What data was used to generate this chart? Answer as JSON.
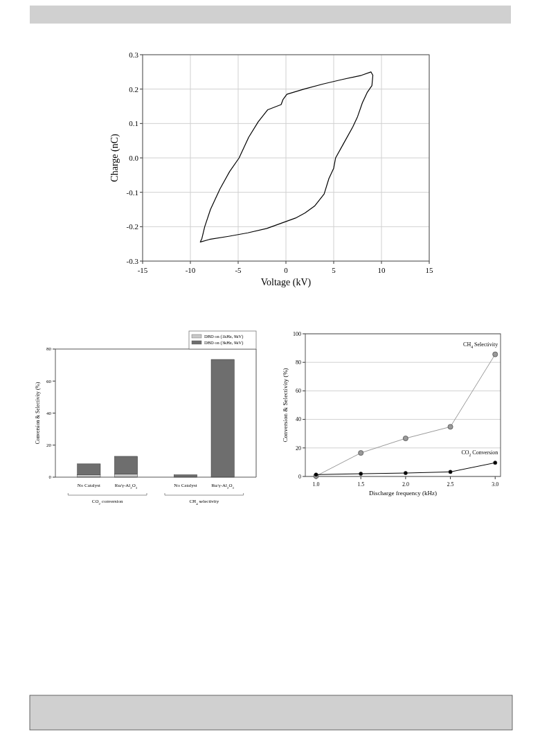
{
  "chart_data": [
    {
      "type": "line",
      "xlabel": "Voltage (kV)",
      "ylabel": "Charge (nC)",
      "xlim": [
        -15,
        15
      ],
      "ylim": [
        -0.3,
        0.3
      ],
      "xticks": [
        -15,
        -10,
        -5,
        {
          "value": 0,
          "label": "0"
        },
        5,
        10,
        15
      ],
      "yticks": [
        -0.3,
        -0.2,
        -0.1,
        {
          "value": 0,
          "label": "0.0"
        },
        0.1,
        0.2,
        0.3
      ],
      "grid": true,
      "marker": "none",
      "line_style": "solid",
      "series": [
        {
          "color": "#000000",
          "x": [
            -9,
            -8,
            -6,
            -4,
            -2,
            0,
            1,
            2,
            3,
            4,
            4.5,
            5,
            5.2,
            6,
            7,
            7.5,
            8,
            8.5,
            9,
            9.1,
            8.9,
            7.9,
            5.9,
            3.9,
            1.9,
            0.1,
            -0.3,
            -0.5,
            -1.9,
            -2.9,
            -3.9,
            -4.9,
            -5.9,
            -6.9,
            -7.9,
            -8.5,
            -8.8,
            -8.95
          ],
          "values": [
            -0.245,
            -0.237,
            -0.228,
            -0.218,
            -0.205,
            -0.185,
            -0.175,
            -0.16,
            -0.14,
            -0.105,
            -0.06,
            -0.03,
            0,
            0.04,
            0.09,
            0.12,
            0.16,
            0.19,
            0.21,
            0.24,
            0.25,
            0.24,
            0.228,
            0.215,
            0.2,
            0.185,
            0.17,
            0.155,
            0.14,
            0.105,
            0.06,
            0,
            -0.04,
            -0.09,
            -0.15,
            -0.2,
            -0.235,
            -0.243
          ]
        }
      ]
    },
    {
      "type": "bar",
      "stacked": true,
      "ylabel": "Conversion & Selectivity (%)",
      "categories": [
        "No Catalyst",
        "Ru/γ-Al$_{2}$O$_{3}$",
        "No Catalyst",
        "Ru/γ-Al$_{2}$O$_{3}$"
      ],
      "ylim": [
        0,
        80
      ],
      "yticks": [
        0,
        20,
        40,
        60,
        80
      ],
      "legend": "top right",
      "annotations": [
        "CO$_{2}$ conversion",
        "CH$_{4}$ selectivity"
      ],
      "series": [
        {
          "name": "DBD on (1kHz, 9kV)",
          "color": "#c8c8c8",
          "values": [
            1.5,
            2.0,
            0,
            0
          ]
        },
        {
          "name": "DBD on (3kHz, 9kV)",
          "color": "#6e6e6e",
          "values": [
            6.8,
            11.0,
            1.5,
            73.5
          ]
        }
      ]
    },
    {
      "type": "line",
      "xlabel": "Discharge frequency (kHz)",
      "ylabel": "Conversion & Selectivity (%)",
      "xlim": [
        0.88,
        3.06
      ],
      "ylim": [
        0,
        100
      ],
      "xticks": [
        {
          "value": 1,
          "label": "1.0"
        },
        1.5,
        {
          "value": 2,
          "label": "2.0"
        },
        2.5,
        {
          "value": 3,
          "label": "3.0"
        }
      ],
      "yticks": [
        0,
        20,
        40,
        60,
        80,
        100
      ],
      "grid": "y",
      "legend": false,
      "marker": "circle",
      "line_style": "solid",
      "series": [
        {
          "name": "CH$_{4}$ Selectivity",
          "color": "#999999",
          "x": [
            1,
            1.5,
            2,
            2.5,
            3
          ],
          "values": [
            0.3,
            16.5,
            26.7,
            34.8,
            85.6
          ]
        },
        {
          "name": "CO$_{2}$ Conversion",
          "color": "#000000",
          "x": [
            1,
            1.5,
            2,
            2.5,
            3
          ],
          "values": [
            1.3,
            1.9,
            2.4,
            3.2,
            9.6
          ]
        }
      ]
    }
  ]
}
